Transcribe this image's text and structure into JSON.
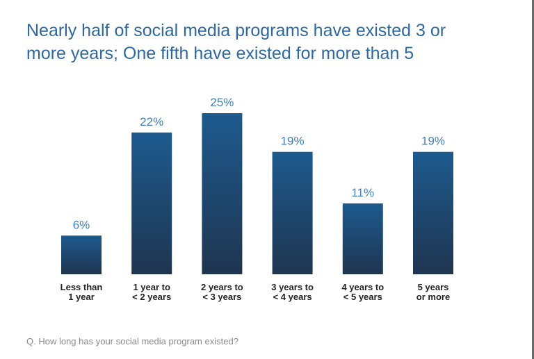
{
  "chart_data": {
    "type": "bar",
    "title_lines": [
      "Nearly half of social media programs have existed 3 or",
      "more years; One fifth have existed for more than 5"
    ],
    "categories": [
      [
        "Less than",
        "1 year"
      ],
      [
        "1 year to",
        "< 2 years"
      ],
      [
        "2 years to",
        "< 3 years"
      ],
      [
        "3 years to",
        "< 4 years"
      ],
      [
        "4 years to",
        "< 5 years"
      ],
      [
        "5 years",
        "or more"
      ]
    ],
    "values": [
      6,
      22,
      25,
      19,
      11,
      19
    ],
    "value_labels": [
      "6%",
      "22%",
      "25%",
      "19%",
      "11%",
      "19%"
    ],
    "ylim": [
      0,
      25
    ],
    "grid": false,
    "legend": "none",
    "bar_color_top": "#1d5a8e",
    "bar_color_bottom": "#1f3550",
    "footnote": "Q. How long has your social media program existed?"
  }
}
